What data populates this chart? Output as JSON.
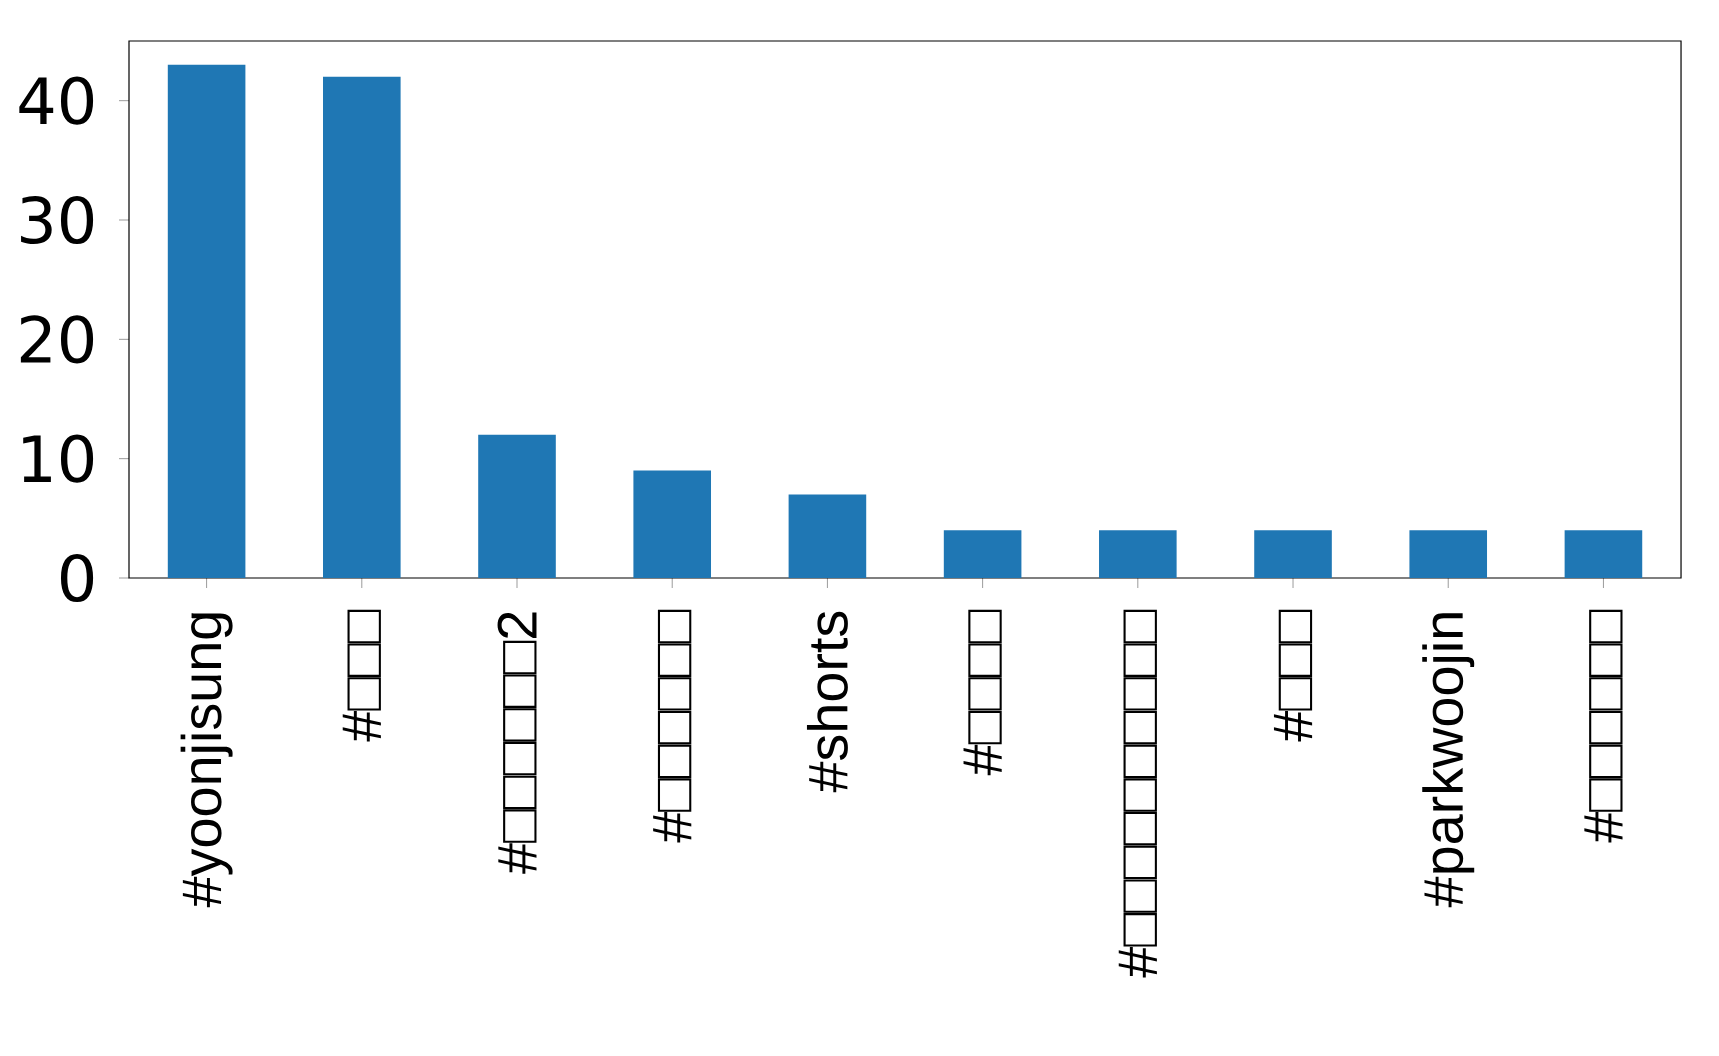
{
  "chart_data": {
    "type": "bar",
    "categories": [
      "#yoonjisung",
      "#□□□",
      "#□□□□□□2",
      "#□□□□□□",
      "#shorts",
      "#□□□□",
      "#□□□□□□□□□□",
      "#□□□",
      "#parkwoojin",
      "#□□□□□□"
    ],
    "values": [
      43,
      42,
      12,
      9,
      7,
      4,
      4,
      4,
      4,
      4
    ],
    "color": "#1f77b4",
    "ylim": [
      0,
      45
    ],
    "yticks": [
      0,
      10,
      20,
      30,
      40
    ]
  }
}
